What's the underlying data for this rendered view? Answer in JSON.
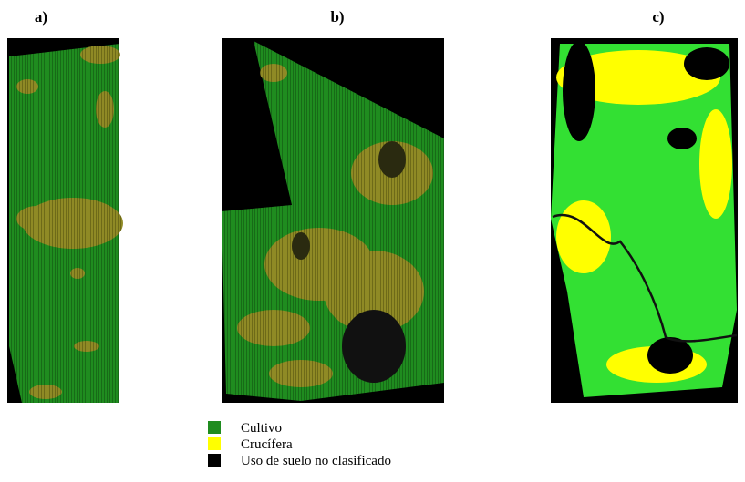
{
  "panels": [
    {
      "label": "a)"
    },
    {
      "label": "b)"
    },
    {
      "label": "c)"
    }
  ],
  "legend": {
    "items": [
      {
        "label": "Cultivo"
      },
      {
        "label": "Crucífera"
      },
      {
        "label": "Uso de suelo no clasificado"
      }
    ]
  }
}
